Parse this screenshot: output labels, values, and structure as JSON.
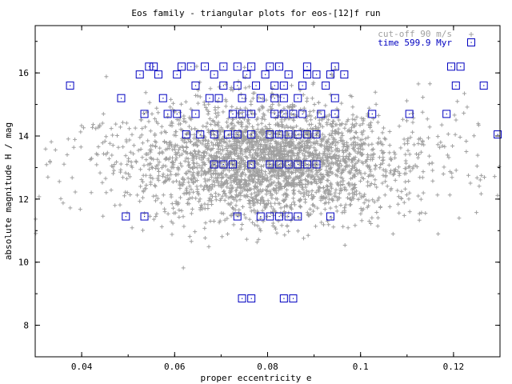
{
  "chart_data": {
    "type": "scatter",
    "title": "Eos family - triangular plots for eos-[12]f run",
    "xlabel": "proper eccentricity e",
    "ylabel": "absolute magnitude H / mag",
    "xlim": [
      0.03,
      0.13
    ],
    "ylim": [
      7.0,
      17.5
    ],
    "xticks": [
      "0.04",
      "0.06",
      "0.08",
      "0.1",
      "0.12"
    ],
    "yticks": [
      "8",
      "10",
      "12",
      "14",
      "16"
    ],
    "grid": false,
    "legend_position": "top-right",
    "series": [
      {
        "name": "cut-off 90 m/s",
        "marker": "plus",
        "color": "#a0a0a0",
        "count_estimate": 3000,
        "distribution": {
          "e_center": 0.08,
          "e_core_sigma": 0.012,
          "e_halo_sigma": 0.022,
          "H_center": 13.2,
          "H_sigma": 0.9,
          "H_min": 7.2,
          "H_max": 16.5
        }
      },
      {
        "name": "time 599.9 Myr",
        "marker": "square-dot",
        "color": "#0000c0",
        "points": [
          [
            0.0375,
            15.6
          ],
          [
            0.0485,
            15.2
          ],
          [
            0.0535,
            14.7
          ],
          [
            0.0585,
            14.7
          ],
          [
            0.0605,
            14.7
          ],
          [
            0.0645,
            14.7
          ],
          [
            0.0725,
            14.7
          ],
          [
            0.0745,
            14.7
          ],
          [
            0.0765,
            14.7
          ],
          [
            0.0815,
            14.7
          ],
          [
            0.0835,
            14.7
          ],
          [
            0.0855,
            14.7
          ],
          [
            0.0875,
            14.7
          ],
          [
            0.0915,
            14.7
          ],
          [
            0.0945,
            14.7
          ],
          [
            0.1025,
            14.7
          ],
          [
            0.1105,
            14.7
          ],
          [
            0.1185,
            14.7
          ],
          [
            0.0575,
            15.2
          ],
          [
            0.0675,
            15.2
          ],
          [
            0.0695,
            15.2
          ],
          [
            0.0745,
            15.2
          ],
          [
            0.0785,
            15.2
          ],
          [
            0.0815,
            15.2
          ],
          [
            0.0835,
            15.2
          ],
          [
            0.0865,
            15.2
          ],
          [
            0.0945,
            15.2
          ],
          [
            0.0545,
            16.2
          ],
          [
            0.0555,
            16.2
          ],
          [
            0.0615,
            16.2
          ],
          [
            0.0635,
            16.2
          ],
          [
            0.0665,
            16.2
          ],
          [
            0.0705,
            16.2
          ],
          [
            0.0735,
            16.2
          ],
          [
            0.0765,
            16.2
          ],
          [
            0.0805,
            16.2
          ],
          [
            0.0825,
            16.2
          ],
          [
            0.0885,
            16.2
          ],
          [
            0.0945,
            16.2
          ],
          [
            0.0525,
            15.95
          ],
          [
            0.0565,
            15.95
          ],
          [
            0.0605,
            15.95
          ],
          [
            0.0685,
            15.95
          ],
          [
            0.0755,
            15.95
          ],
          [
            0.0795,
            15.95
          ],
          [
            0.0845,
            15.95
          ],
          [
            0.0885,
            15.95
          ],
          [
            0.0905,
            15.95
          ],
          [
            0.0935,
            15.95
          ],
          [
            0.0965,
            15.95
          ],
          [
            0.0645,
            15.6
          ],
          [
            0.0705,
            15.6
          ],
          [
            0.0735,
            15.6
          ],
          [
            0.0775,
            15.6
          ],
          [
            0.0815,
            15.6
          ],
          [
            0.0835,
            15.6
          ],
          [
            0.0875,
            15.6
          ],
          [
            0.0925,
            15.6
          ],
          [
            0.1195,
            16.2
          ],
          [
            0.1215,
            16.2
          ],
          [
            0.1205,
            15.6
          ],
          [
            0.1265,
            15.6
          ],
          [
            0.0625,
            14.05
          ],
          [
            0.0655,
            14.05
          ],
          [
            0.0685,
            14.05
          ],
          [
            0.0715,
            14.05
          ],
          [
            0.0735,
            14.05
          ],
          [
            0.0765,
            14.05
          ],
          [
            0.0805,
            14.05
          ],
          [
            0.0825,
            14.05
          ],
          [
            0.0845,
            14.05
          ],
          [
            0.0865,
            14.05
          ],
          [
            0.0885,
            14.05
          ],
          [
            0.0905,
            14.05
          ],
          [
            0.1295,
            14.05
          ],
          [
            0.0685,
            13.1
          ],
          [
            0.0705,
            13.1
          ],
          [
            0.0725,
            13.1
          ],
          [
            0.0765,
            13.1
          ],
          [
            0.0805,
            13.1
          ],
          [
            0.0825,
            13.1
          ],
          [
            0.0845,
            13.1
          ],
          [
            0.0865,
            13.1
          ],
          [
            0.0885,
            13.1
          ],
          [
            0.0905,
            13.1
          ],
          [
            0.0495,
            11.45
          ],
          [
            0.0535,
            11.45
          ],
          [
            0.0735,
            11.45
          ],
          [
            0.0785,
            11.45
          ],
          [
            0.0805,
            11.45
          ],
          [
            0.0825,
            11.45
          ],
          [
            0.0845,
            11.45
          ],
          [
            0.0865,
            11.45
          ],
          [
            0.0935,
            11.45
          ],
          [
            0.0745,
            8.85
          ],
          [
            0.0765,
            8.85
          ],
          [
            0.0835,
            8.85
          ],
          [
            0.0855,
            8.85
          ]
        ]
      }
    ]
  }
}
